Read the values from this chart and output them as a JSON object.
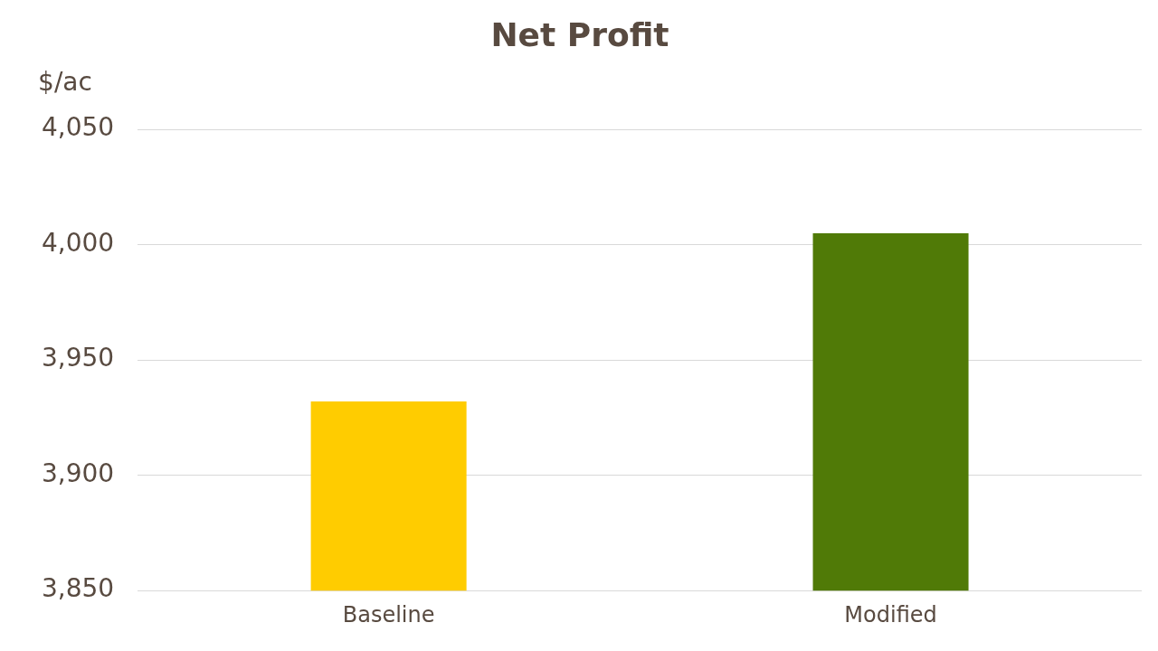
{
  "chart_data": {
    "type": "bar",
    "title": "Net Profit",
    "ylabel": "$/ac",
    "categories": [
      "Baseline",
      "Modified"
    ],
    "series": [
      {
        "colors": [
          "#ffcc00",
          "#507a07"
        ],
        "values": [
          3932,
          4005
        ]
      }
    ],
    "ylim": [
      3850,
      4050
    ],
    "yticks": [
      {
        "value": 3850,
        "label": "3,850"
      },
      {
        "value": 3900,
        "label": "3,900"
      },
      {
        "value": 3950,
        "label": "3,950"
      },
      {
        "value": 4000,
        "label": "4,000"
      },
      {
        "value": 4050,
        "label": "4,050"
      }
    ],
    "grid": "y",
    "legend": false
  }
}
